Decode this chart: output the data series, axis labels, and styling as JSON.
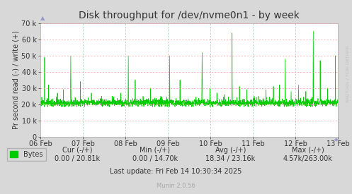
{
  "title": "Disk throughput for /dev/nvme0n1 - by week",
  "ylabel": "Pr second read (-) / write (+)",
  "bg_color": "#d8d8d8",
  "plot_bg_color": "#ffffff",
  "grid_color": "#ff9999",
  "line_color": "#00cc00",
  "ylim": [
    0,
    70000
  ],
  "yticks": [
    0,
    10000,
    20000,
    30000,
    40000,
    50000,
    60000,
    70000
  ],
  "ytick_labels": [
    "0",
    "10 k",
    "20 k",
    "30 k",
    "40 k",
    "50 k",
    "60 k",
    "70 k"
  ],
  "xtick_labels": [
    "06 Feb",
    "07 Feb",
    "08 Feb",
    "09 Feb",
    "10 Feb",
    "11 Feb",
    "12 Feb",
    "13 Feb"
  ],
  "legend_label": "Bytes",
  "legend_color": "#00cc00",
  "watermark": "RRDTOOL / TOBI OETIKER",
  "munin_version": "Munin 2.0.56",
  "baseline": 21000,
  "spike_positions": [
    28,
    55,
    115,
    155,
    205,
    270,
    345,
    415,
    485,
    545,
    595,
    642,
    695,
    745,
    815,
    875,
    945,
    998,
    1045,
    1095,
    1148,
    1195,
    1248,
    1298,
    1348,
    1398,
    1448,
    1478,
    1528,
    1578,
    1618,
    1658,
    1698,
    1748,
    1798,
    1848,
    1895,
    1945,
    1998
  ],
  "spike_heights": [
    49000,
    32000,
    27000,
    29000,
    50000,
    34000,
    27000,
    25000,
    25000,
    27000,
    50000,
    35000,
    25000,
    30000,
    25000,
    50000,
    35000,
    22000,
    23000,
    52000,
    30000,
    27000,
    26000,
    64000,
    31000,
    29000,
    25000,
    25000,
    29000,
    31000,
    32000,
    48000,
    28000,
    32000,
    28000,
    65000,
    47000,
    30000,
    50000
  ]
}
